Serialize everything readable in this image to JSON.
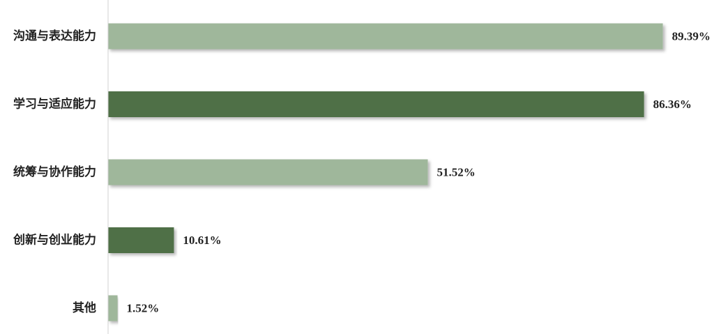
{
  "chart_data": {
    "type": "bar",
    "orientation": "horizontal",
    "title": "",
    "xlabel": "",
    "ylabel": "",
    "xlim": [
      0,
      100
    ],
    "grid": false,
    "legend": "none",
    "categories": [
      "沟通与表达能力",
      "学习与适应能力",
      "统筹与协作能力",
      "创新与创业能力",
      "其他"
    ],
    "values": [
      89.39,
      86.36,
      51.52,
      10.61,
      1.52
    ],
    "value_labels": [
      "89.39%",
      "86.36%",
      "51.52%",
      "10.61%",
      "1.52%"
    ],
    "bar_colors": [
      "#9fb79b",
      "#4f6f47",
      "#9fb79b",
      "#4f6f47",
      "#9fb79b"
    ],
    "axis_color": "#d0d0d0"
  }
}
